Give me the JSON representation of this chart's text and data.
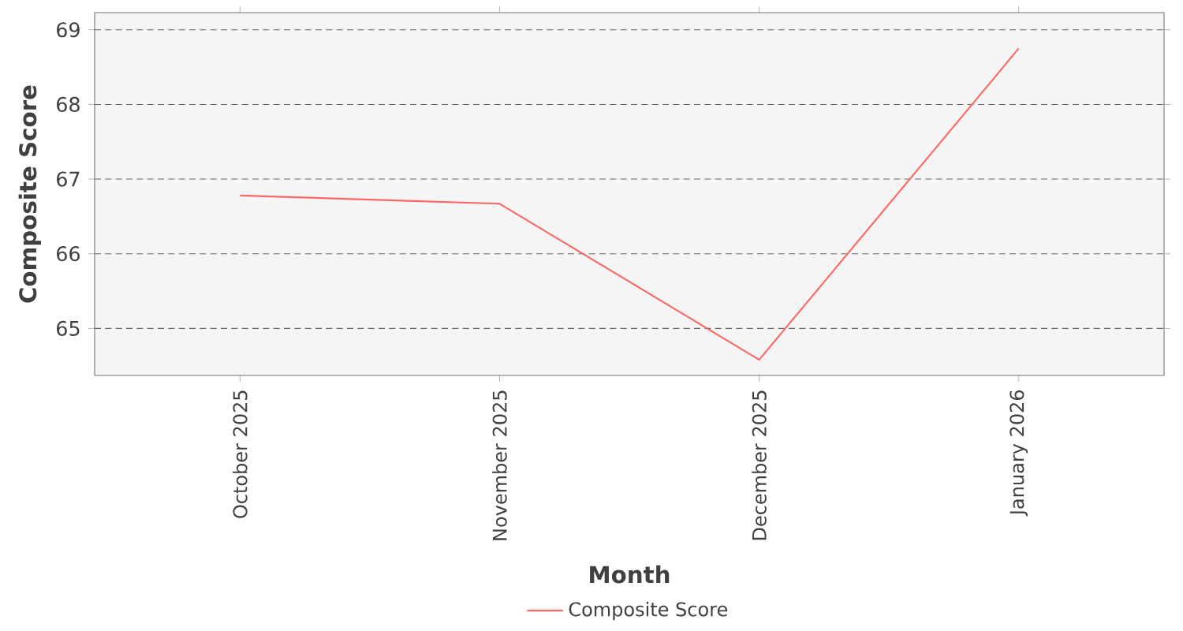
{
  "chart_data": {
    "type": "line",
    "xlabel": "Month",
    "ylabel": "Composite Score",
    "categories": [
      "October 2025",
      "November 2025",
      "December 2025",
      "January 2026"
    ],
    "series": [
      {
        "name": "Composite Score",
        "color": "#ff6666",
        "values": [
          66.78,
          66.67,
          64.58,
          68.75
        ]
      }
    ],
    "ylim": [
      64.37,
      69.23
    ],
    "yticks": [
      65,
      66,
      67,
      68,
      69
    ],
    "grid": "y",
    "legend": "bottom",
    "marker": "none",
    "line_style": "solid"
  }
}
